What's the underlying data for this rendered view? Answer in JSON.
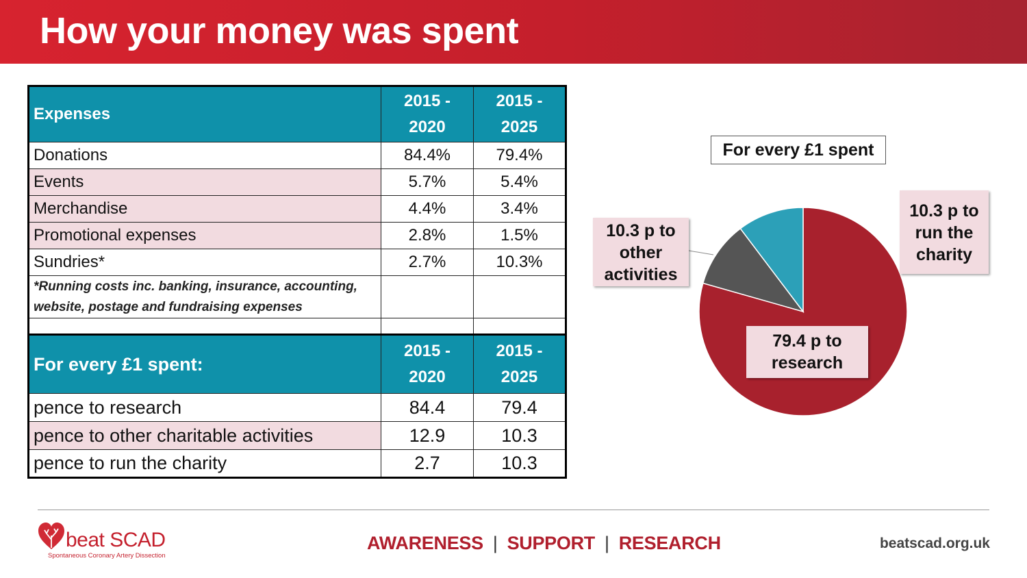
{
  "header": {
    "title": "How your money was spent"
  },
  "expenses_table": {
    "header": {
      "label": "Expenses",
      "col1": "2015 - 2020",
      "col2": "2015 - 2025"
    },
    "rows": [
      {
        "label": "Donations",
        "v1": "84.4%",
        "v2": "79.4%"
      },
      {
        "label": "Events",
        "v1": "5.7%",
        "v2": "5.4%"
      },
      {
        "label": "Merchandise",
        "v1": "4.4%",
        "v2": "3.4%"
      },
      {
        "label": "Promotional expenses",
        "v1": "2.8%",
        "v2": "1.5%"
      },
      {
        "label": "Sundries*",
        "v1": "2.7%",
        "v2": "10.3%"
      }
    ],
    "note_line1": "*Running costs inc. banking, insurance, accounting,",
    "note_line2": "website, postage and fundraising expenses"
  },
  "pound_table": {
    "header": {
      "label": "For every £1 spent:",
      "col1": "2015 - 2020",
      "col2": "2015 - 2025"
    },
    "rows": [
      {
        "label": "pence to research",
        "v1": "84.4",
        "v2": "79.4"
      },
      {
        "label": "pence to other charitable activities",
        "v1": "12.9",
        "v2": "10.3"
      },
      {
        "label": "pence to run the charity",
        "v1": "2.7",
        "v2": "10.3"
      }
    ]
  },
  "chart_data": {
    "type": "pie",
    "title": "For every £1 spent",
    "slices": [
      {
        "label": "79.4 p to research",
        "value": 79.4,
        "color": "#a8212d"
      },
      {
        "label": "10.3 p to other activities",
        "value": 10.3,
        "color": "#555555"
      },
      {
        "label": "10.3 p to run the charity",
        "value": 10.3,
        "color": "#2ca0b8"
      }
    ],
    "callouts": {
      "other": "10.3 p to other activities",
      "run": "10.3 p to run the charity",
      "research": "79.4 p to research"
    }
  },
  "footer": {
    "brand": "beat SCAD",
    "brand_sub": "Spontaneous Coronary Artery Dissection",
    "tagline": [
      "AWARENESS",
      "SUPPORT",
      "RESEARCH"
    ],
    "tagline_sep": "|",
    "website": "beatscad.org.uk"
  },
  "colors": {
    "accent": "#c41f2c",
    "teal": "#0f91aa",
    "pink": "#f2dbe0"
  }
}
